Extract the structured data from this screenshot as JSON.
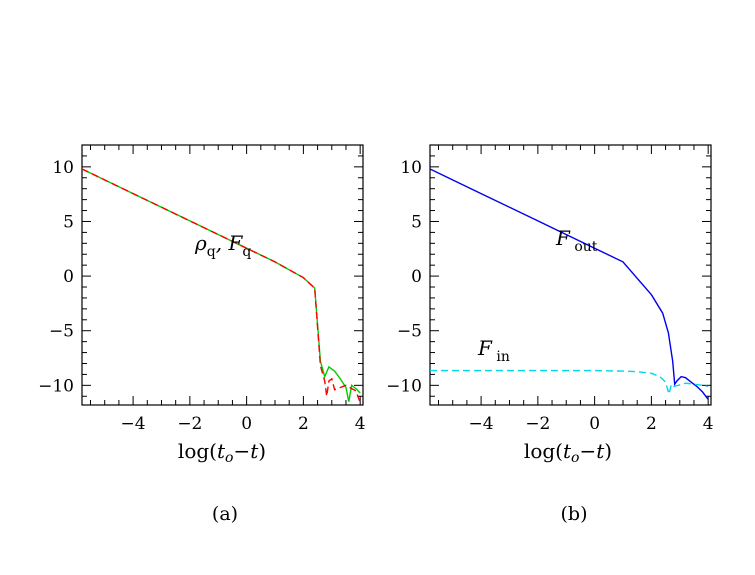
{
  "chart_data": [
    {
      "type": "line",
      "panel_label": "(a)",
      "xlabel": "log(t_o−t)",
      "xlim": [
        -5.8,
        4.1
      ],
      "ylim": [
        -11.8,
        12
      ],
      "xticks": [
        -4,
        -2,
        0,
        2,
        4
      ],
      "yticks": [
        10,
        5,
        0,
        -5,
        -10
      ],
      "annotations": [
        {
          "text": "ρq, Fq",
          "x": -0.9,
          "y": 2.5
        }
      ],
      "series": [
        {
          "color": "#00cc00",
          "style": "solid",
          "x": [
            -5.8,
            -4,
            -2,
            0,
            1,
            2,
            2.4,
            2.6,
            2.75,
            2.9,
            3.1,
            3.3,
            3.5,
            3.6,
            3.7,
            3.85,
            4.0
          ],
          "y": [
            9.8,
            7.55,
            5.05,
            2.55,
            1.3,
            -0.15,
            -1.1,
            -7.8,
            -9.2,
            -8.3,
            -8.7,
            -9.4,
            -10.2,
            -11.5,
            -10.0,
            -10.3,
            -10.7
          ]
        },
        {
          "color": "#ff0000",
          "style": "dashed",
          "x": [
            -5.8,
            -4,
            -2,
            0,
            1,
            2,
            2.4,
            2.6,
            2.75,
            2.82,
            2.9,
            3.0,
            3.1,
            3.3,
            3.5,
            3.7,
            3.85,
            4.0
          ],
          "y": [
            9.8,
            7.55,
            5.05,
            2.55,
            1.3,
            -0.15,
            -1.1,
            -8.2,
            -9.6,
            -11.0,
            -9.6,
            -9.4,
            -10.4,
            -10.2,
            -10.0,
            -10.3,
            -10.5,
            -11.6
          ]
        }
      ]
    },
    {
      "type": "line",
      "panel_label": "(b)",
      "xlabel": "log(t_o−t)",
      "xlim": [
        -5.8,
        4.1
      ],
      "ylim": [
        -11.8,
        12
      ],
      "xticks": [
        -4,
        -2,
        0,
        2,
        4
      ],
      "yticks": [
        10,
        5,
        0,
        -5,
        -10
      ],
      "annotations": [
        {
          "text": "Fout",
          "x": -1.8,
          "y": 3.2
        },
        {
          "text": "Fin",
          "x": -5.1,
          "y": -6.5
        }
      ],
      "series": [
        {
          "name": "Fout",
          "color": "#0000ee",
          "style": "solid",
          "x": [
            -5.8,
            -4,
            -2,
            0,
            1,
            2,
            2.4,
            2.6,
            2.75,
            2.82,
            2.9,
            3.05,
            3.2,
            3.4,
            3.6,
            3.8,
            4.0
          ],
          "y": [
            9.8,
            7.55,
            5.05,
            2.55,
            1.3,
            -1.7,
            -3.4,
            -5.2,
            -7.8,
            -9.9,
            -9.6,
            -9.2,
            -9.3,
            -9.7,
            -10.1,
            -10.6,
            -11.3
          ]
        },
        {
          "name": "Fin",
          "color": "#00d8e8",
          "style": "dashed",
          "x": [
            -5.8,
            -4,
            -2,
            0,
            1,
            1.5,
            2.0,
            2.3,
            2.5,
            2.62,
            2.7,
            2.8,
            2.95,
            3.2,
            3.5,
            3.8,
            4.0
          ],
          "y": [
            -8.65,
            -8.65,
            -8.65,
            -8.65,
            -8.7,
            -8.75,
            -8.9,
            -9.2,
            -9.7,
            -10.8,
            -9.9,
            -10.1,
            -10.0,
            -9.8,
            -9.9,
            -10.0,
            -10.1
          ]
        }
      ]
    }
  ]
}
